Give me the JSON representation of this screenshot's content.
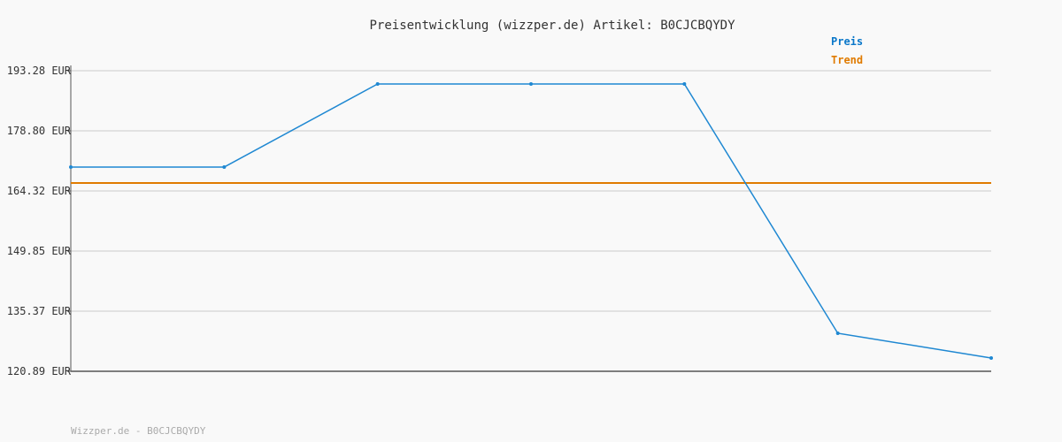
{
  "chart_data": {
    "type": "line",
    "title": "Preisentwicklung (wizzper.de) Artikel: B0CJCBQYDY",
    "xlabel": "",
    "ylabel": "",
    "ylim": [
      120.89,
      193.28
    ],
    "y_ticks": [
      "193.28 EUR",
      "178.80 EUR",
      "164.32 EUR",
      "149.85 EUR",
      "135.37 EUR",
      "120.89 EUR"
    ],
    "y_tick_values": [
      193.28,
      178.8,
      164.32,
      149.85,
      135.37,
      120.89
    ],
    "grid": true,
    "legend_position": "top-right",
    "series": [
      {
        "name": "Preis",
        "color": "#1f88d2",
        "values": [
          170.07,
          170.07,
          190.09,
          190.09,
          190.09,
          130.05,
          124.09
        ]
      },
      {
        "name": "Trend",
        "color": "#e07b00",
        "values": [
          166.24,
          166.24
        ]
      }
    ],
    "legend": [
      {
        "label": "Preis",
        "color": "#0a77c9"
      },
      {
        "label": "Trend",
        "color": "#e07b00"
      }
    ]
  },
  "footer": "Wizzper.de - B0CJCBQYDY"
}
